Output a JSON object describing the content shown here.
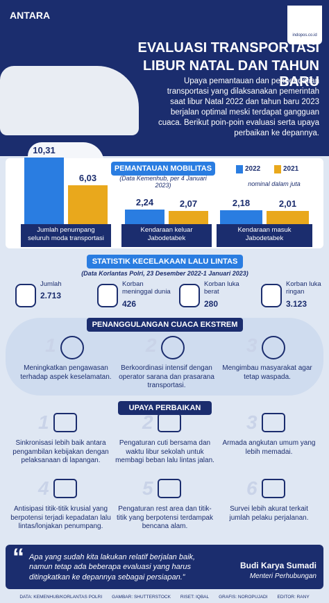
{
  "header": {
    "brand": "ANTARA",
    "logo_text": "indopos.co.id",
    "title_line1": "EVALUASI TRANSPORTASI",
    "title_line2": "LIBUR NATAL DAN TAHUN BARU"
  },
  "intro": "Upaya pemantauan dan pengendalian transportasi yang dilaksanakan pemerintah saat libur Natal 2022 dan tahun baru 2023 berjalan optimal meski terdapat gangguan cuaca. Berikut poin-poin evaluasi serta upaya perbaikan ke depannya.",
  "mobility": {
    "title": "PEMANTAUAN MOBILITAS",
    "source": "(Data Kemenhub, per 4 Januari 2023)",
    "unit_note": "nominal dalam juta",
    "categories": [
      "Jumlah penumpang seluruh moda transportasi",
      "Kendaraan keluar Jabodetabek",
      "Kendaraan masuk Jabodetabek"
    ],
    "series": [
      {
        "name": "2022",
        "color": "#2a7de1",
        "values": [
          10.31,
          2.24,
          2.18
        ],
        "value_labels": [
          "10,31",
          "2,24",
          "2,18"
        ]
      },
      {
        "name": "2021",
        "color": "#e9a81c",
        "values": [
          6.03,
          2.07,
          2.01
        ],
        "value_labels": [
          "6,03",
          "2,07",
          "2,01"
        ]
      }
    ]
  },
  "accidents": {
    "title": "STATISTIK KECELAKAAN LALU LINTAS",
    "source": "(Data Korlantas Polri, 23 Desember 2022-1 Januari 2023)",
    "items": [
      {
        "label": "Jumlah",
        "value": "2.713"
      },
      {
        "label": "Korban meninggal dunia",
        "value": "426"
      },
      {
        "label": "Korban luka berat",
        "value": "280"
      },
      {
        "label": "Korban luka ringan",
        "value": "3.123"
      }
    ]
  },
  "weather": {
    "title": "PENANGGULANGAN CUACA EKSTREM",
    "items": [
      {
        "number": "1",
        "text": "Meningkatkan pengawasan terhadap aspek keselamatan."
      },
      {
        "number": "2",
        "text": "Berkoordinasi intensif dengan operator sarana dan prasarana transportasi."
      },
      {
        "number": "3",
        "text": "Mengimbau masyarakat agar tetap waspada."
      }
    ]
  },
  "improvements": {
    "title": "UPAYA PERBAIKAN",
    "items": [
      {
        "number": "1",
        "text": "Sinkronisasi lebih baik antara pengambilan kebijakan dengan pelaksanaan di lapangan."
      },
      {
        "number": "2",
        "text": "Pengaturan cuti bersama dan waktu libur sekolah untuk membagi beban lalu lintas jalan."
      },
      {
        "number": "3",
        "text": "Armada angkutan umum yang lebih memadai."
      },
      {
        "number": "4",
        "text": "Antisipasi titik-titik krusial yang berpotensi terjadi kepadatan lalu lintas/lonjakan penumpang."
      },
      {
        "number": "5",
        "text": "Pengaturan rest area dan titik-titik yang berpotensi terdampak bencana alam."
      },
      {
        "number": "6",
        "text": "Survei lebih akurat terkait jumlah pelaku perjalanan."
      }
    ]
  },
  "quote": {
    "mark": "“",
    "text": "Apa yang sudah kita lakukan relatif berjalan baik, namun tetap ada beberapa evaluasi yang harus ditingkatkan ke depannya sebagai persiapan.”",
    "name": "Budi Karya Sumadi",
    "role": "Menteri Perhubungan"
  },
  "credits": [
    "DATA: KEMENHUB/KORLANTAS POLRI",
    "GAMBAR: SHUTTERSTOCK",
    "RISET: IQBAL",
    "GRAFIS: NOROPUJADI",
    "EDITOR: RANY"
  ]
}
